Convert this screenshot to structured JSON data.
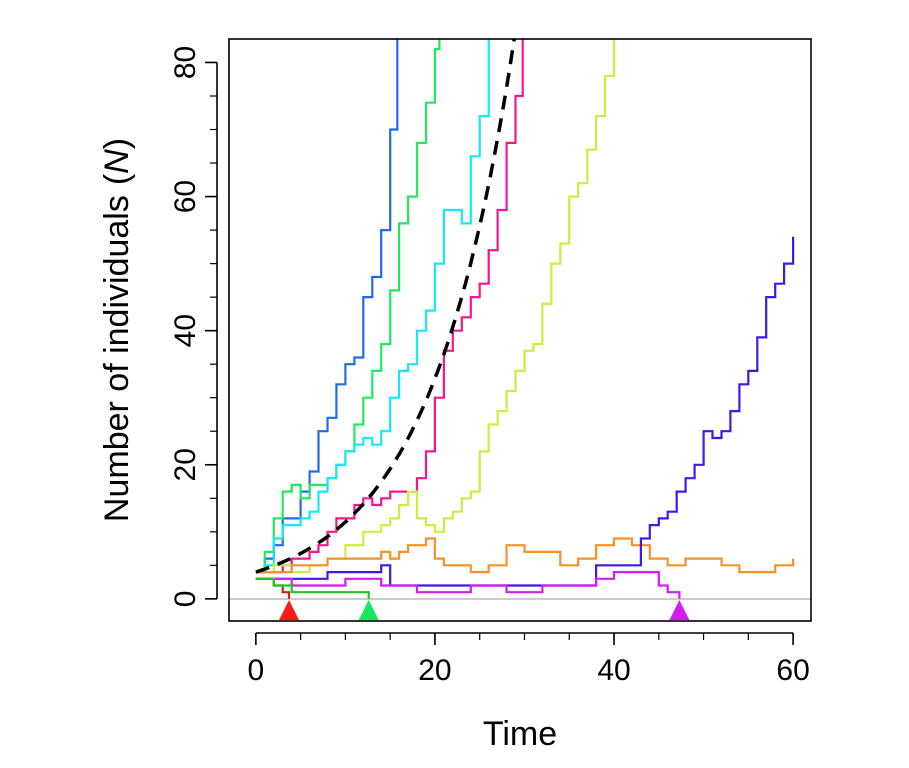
{
  "chart_data": {
    "type": "line",
    "xlabel": "Time",
    "ylabel": "Number of individuals",
    "ylabel_symbol": "N",
    "xlim": [
      -3,
      62
    ],
    "ylim": [
      -3.3,
      83.5
    ],
    "xticks": [
      0,
      20,
      40,
      60
    ],
    "xticks_minor": [
      0,
      5,
      10,
      15,
      20,
      25,
      30,
      35,
      40,
      45,
      50,
      55,
      60
    ],
    "yticks": [
      0,
      20,
      40,
      60,
      80
    ],
    "yticks_minor": [
      0,
      5,
      10,
      15,
      20,
      25,
      30,
      35,
      40,
      45,
      50,
      55,
      60,
      65,
      70,
      75,
      80
    ],
    "reference_line_y": 0,
    "reference_line_color": "#bbbbbb",
    "series": [
      {
        "color": "#1e6be8",
        "x": [
          0,
          1,
          2,
          3,
          4,
          5,
          6,
          7,
          8,
          9,
          10,
          11,
          12,
          13,
          14,
          15,
          15.8
        ],
        "y": [
          4,
          6,
          8,
          12,
          12,
          16,
          19,
          25,
          27,
          32,
          35,
          36,
          45,
          48,
          55,
          70,
          85
        ]
      },
      {
        "color": "#22e860",
        "x": [
          0,
          1,
          2,
          3,
          4,
          5,
          6,
          7,
          8,
          9,
          10,
          11,
          12,
          13,
          14,
          15,
          16,
          17,
          18,
          19,
          20,
          20.5
        ],
        "y": [
          4,
          7,
          12,
          16,
          17,
          15,
          17,
          17,
          18,
          20,
          22,
          26,
          30,
          34,
          38,
          46,
          56,
          60,
          68,
          74,
          82,
          85
        ]
      },
      {
        "color": "#17e8f5",
        "x": [
          0,
          1,
          2,
          3,
          4,
          5,
          6,
          7,
          8,
          9,
          10,
          11,
          12,
          13,
          14,
          15,
          16,
          17,
          18,
          19,
          20,
          21,
          22,
          23,
          24,
          25,
          26
        ],
        "y": [
          4,
          5,
          9,
          11,
          11,
          12,
          13,
          16,
          18,
          20,
          22,
          23,
          24,
          23,
          25,
          30,
          34,
          35,
          40,
          43,
          50,
          58,
          58,
          56,
          66,
          72,
          85
        ]
      },
      {
        "color": "#f01890",
        "x": [
          0,
          2,
          3,
          4,
          5,
          6,
          7,
          8,
          9,
          10,
          11,
          12,
          13,
          14,
          15,
          16,
          17,
          18,
          19,
          20,
          21,
          22,
          23,
          24,
          25,
          26,
          27,
          28,
          29,
          29.8
        ],
        "y": [
          4,
          4,
          5,
          6,
          6,
          7,
          8,
          10,
          12,
          12,
          14,
          15,
          14,
          15,
          16,
          16,
          16,
          18,
          22,
          30,
          37,
          40,
          42,
          45,
          47,
          52,
          58,
          68,
          75,
          85
        ]
      },
      {
        "color": "#c8f040",
        "x": [
          0,
          2,
          4,
          6,
          8,
          10,
          12,
          14,
          15,
          16,
          17,
          18,
          19,
          20,
          21,
          22,
          23,
          24,
          25,
          26,
          27,
          28,
          29,
          30,
          31,
          32,
          33,
          34,
          35,
          36,
          37,
          38,
          39,
          40
        ],
        "y": [
          4,
          5,
          4,
          5,
          6,
          8,
          10,
          11,
          12,
          14,
          16,
          12,
          11,
          10,
          12,
          13,
          15,
          16,
          22,
          26,
          28,
          31,
          34,
          37,
          38,
          44,
          50,
          53,
          60,
          62,
          67,
          72,
          78,
          85
        ]
      },
      {
        "color": "#f5922a",
        "x": [
          0,
          2,
          4,
          6,
          8,
          10,
          12,
          14,
          15,
          16,
          17,
          18,
          19,
          20,
          21,
          22,
          24,
          26,
          28,
          30,
          32,
          34,
          36,
          38,
          40,
          42,
          44,
          46,
          48,
          50,
          52,
          54,
          56,
          58,
          60
        ],
        "y": [
          4,
          4,
          5,
          5,
          6,
          6,
          6,
          7,
          6,
          7,
          8,
          8,
          9,
          6,
          5,
          5,
          4,
          5,
          8,
          7,
          7,
          5,
          6,
          8,
          9,
          8,
          6,
          5,
          6,
          6,
          5,
          4,
          4,
          5,
          6
        ]
      },
      {
        "color": "#4018e8",
        "x": [
          0,
          2,
          4,
          6,
          8,
          10,
          12,
          14,
          15,
          16,
          18,
          20,
          22,
          24,
          26,
          28,
          30,
          32,
          34,
          36,
          38,
          40,
          42,
          43,
          44,
          45,
          46,
          47,
          48,
          49,
          50,
          51,
          52,
          53,
          54,
          55,
          56,
          57,
          58,
          59,
          60
        ],
        "y": [
          3,
          3,
          3,
          3,
          4,
          4,
          4,
          5,
          2,
          2,
          2,
          2,
          2,
          2,
          2,
          2,
          2,
          2,
          2,
          2,
          5,
          5,
          5,
          9,
          11,
          12,
          13,
          16,
          18,
          20,
          25,
          24,
          25,
          28,
          32,
          34,
          39,
          45,
          47,
          50,
          54
        ]
      },
      {
        "color": "#d21ef0",
        "x": [
          0,
          2,
          4,
          6,
          8,
          10,
          12,
          14,
          16,
          18,
          20,
          22,
          24,
          26,
          28,
          30,
          32,
          34,
          36,
          38,
          40,
          42,
          44,
          45,
          46,
          47.3
        ],
        "y": [
          3,
          3,
          2,
          2,
          2,
          3,
          3,
          2,
          2,
          1,
          1,
          1,
          2,
          2,
          1,
          1,
          2,
          2,
          2,
          3,
          4,
          4,
          4,
          2,
          1,
          0
        ]
      },
      {
        "color": "#d21e1e",
        "x": [
          0,
          1,
          2,
          3,
          3.7
        ],
        "y": [
          3,
          3,
          2,
          1,
          0
        ]
      },
      {
        "color": "#1ec81e",
        "x": [
          0,
          2,
          4,
          6,
          8,
          10,
          12,
          12.6
        ],
        "y": [
          3,
          2,
          1,
          1,
          1,
          1,
          1,
          0
        ]
      }
    ],
    "expected_curve": {
      "style": "dashed",
      "color": "#000000",
      "y0": 4,
      "rate": 0.1053,
      "x_end": 30
    },
    "extinction_markers": [
      {
        "x": 3.7,
        "color": "#ff1a1a"
      },
      {
        "x": 12.6,
        "color": "#18e860"
      },
      {
        "x": 47.3,
        "color": "#d21ef0"
      }
    ]
  }
}
